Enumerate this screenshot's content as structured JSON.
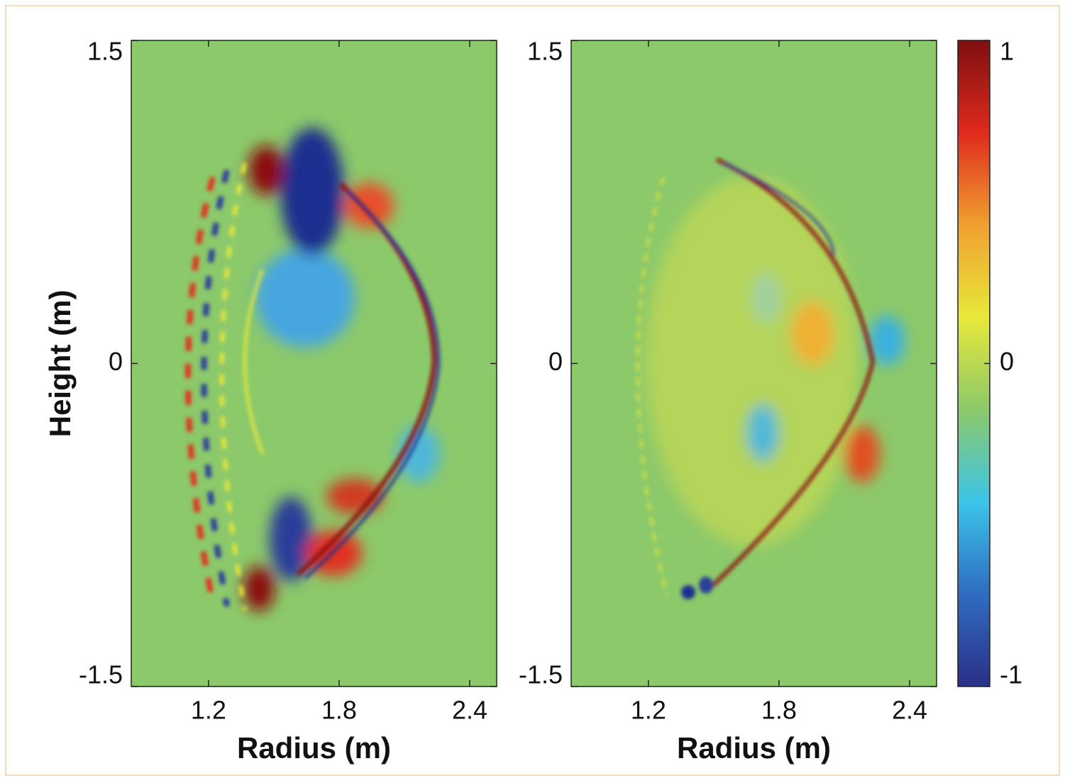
{
  "chart_data": [
    {
      "type": "heatmap",
      "xlabel": "Radius (m)",
      "ylabel": "Height (m)",
      "xlim": [
        0.845,
        2.524
      ],
      "ylim": [
        -1.5,
        1.5
      ],
      "xticks": [
        1.2,
        1.8,
        2.4
      ],
      "yticks": [
        -1.5,
        0,
        1.5
      ]
    },
    {
      "type": "heatmap",
      "xlabel": "Radius (m)",
      "xlim": [
        0.845,
        2.524
      ],
      "ylim": [
        -1.5,
        1.5
      ],
      "xticks": [
        1.2,
        1.8,
        2.4
      ],
      "yticks": [
        -1.5,
        0,
        1.5
      ]
    },
    {
      "type": "colorbar",
      "ylim": [
        -1,
        1
      ],
      "yticks": [
        -1,
        0,
        1
      ],
      "colors": [
        "#2b2f87",
        "#2f6cc0",
        "#3cc4e8",
        "#8cc96a",
        "#e8e83a",
        "#f0a030",
        "#e02a1e",
        "#7e1010"
      ]
    }
  ]
}
